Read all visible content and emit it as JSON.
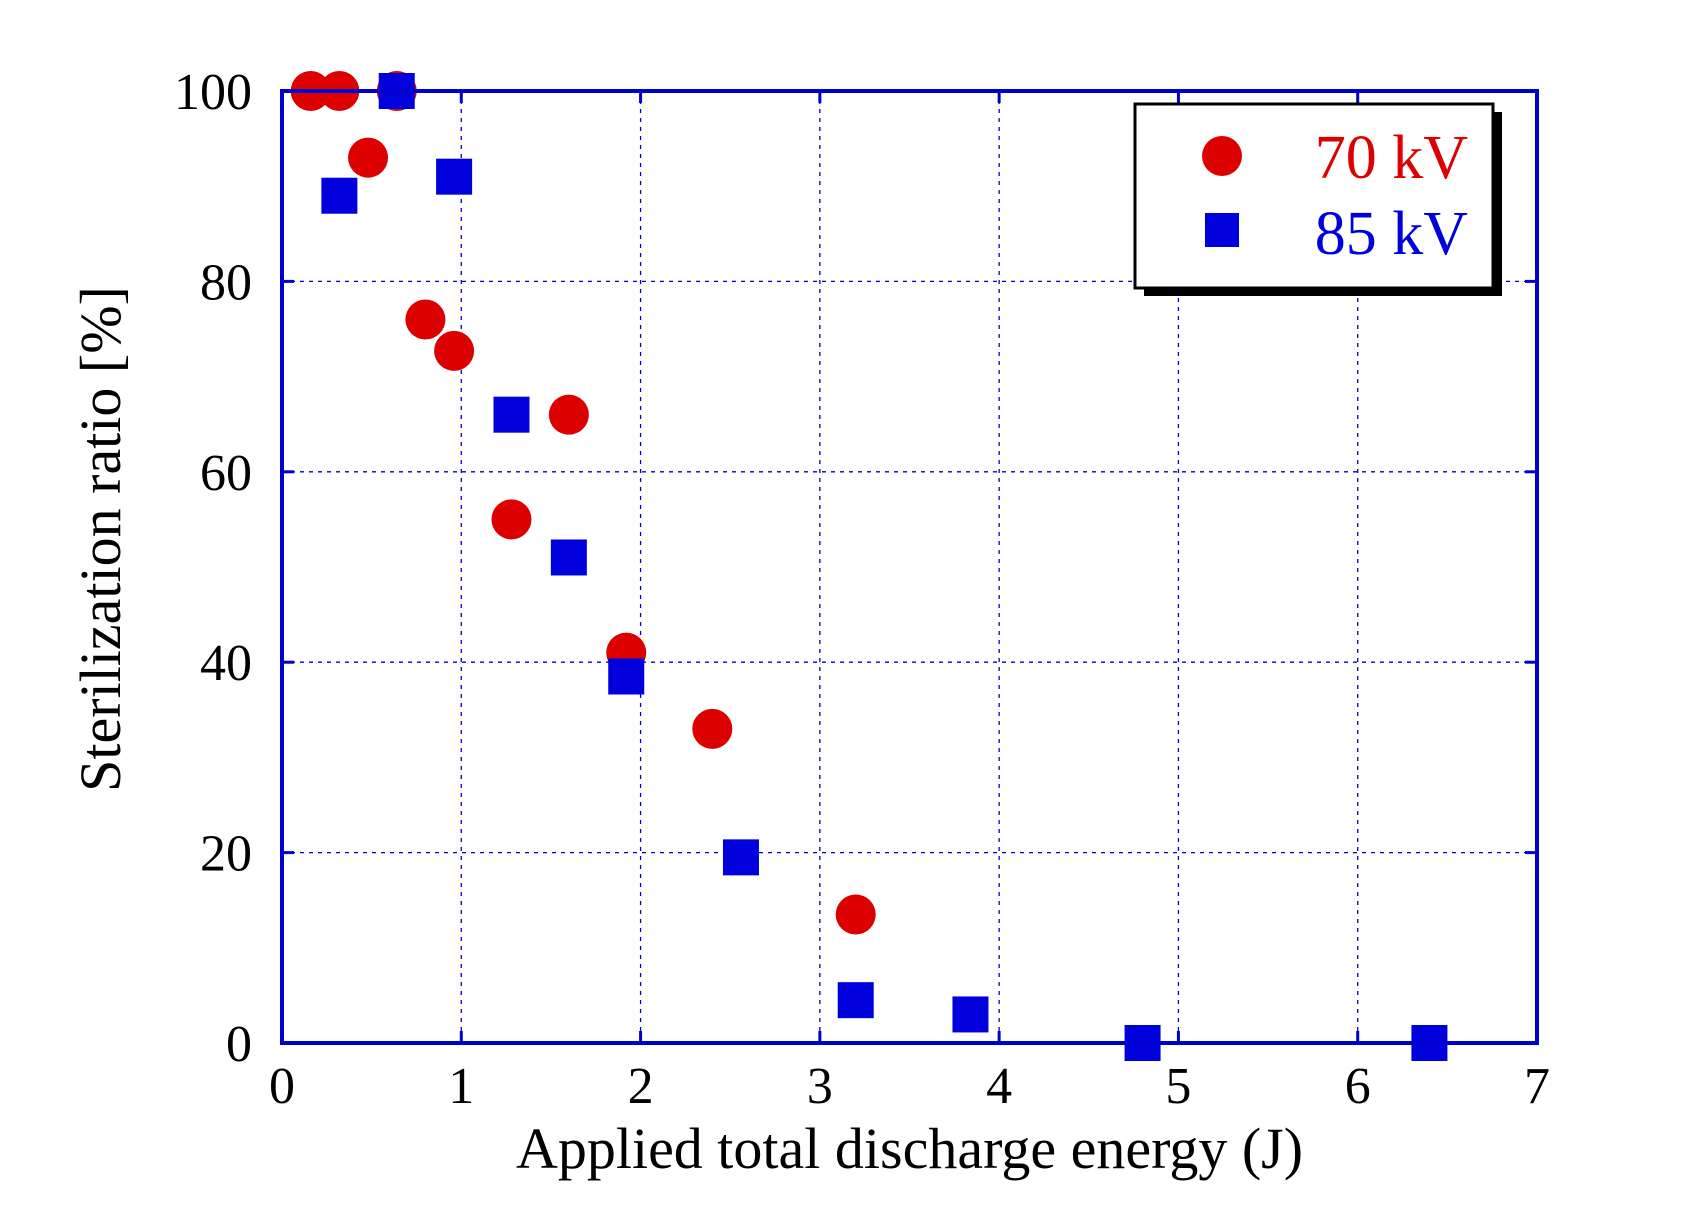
{
  "chart_data": {
    "type": "scatter",
    "title": "",
    "xlabel": "Applied total discharge energy (J)",
    "ylabel": "Sterilization ratio [%]",
    "xlim": [
      0,
      7
    ],
    "ylim": [
      0,
      100
    ],
    "xticks": [
      0,
      1,
      2,
      3,
      4,
      5,
      6,
      7
    ],
    "yticks": [
      0,
      20,
      40,
      60,
      80,
      100
    ],
    "grid": true,
    "legend_position": "top-right",
    "series": [
      {
        "name": "70 kV",
        "marker": "circle",
        "color": "#dd0000",
        "points": [
          {
            "x": 0.16,
            "y": 100
          },
          {
            "x": 0.32,
            "y": 100
          },
          {
            "x": 0.48,
            "y": 93
          },
          {
            "x": 0.64,
            "y": 100
          },
          {
            "x": 0.8,
            "y": 76
          },
          {
            "x": 0.96,
            "y": 72.7
          },
          {
            "x": 1.28,
            "y": 55
          },
          {
            "x": 1.6,
            "y": 66
          },
          {
            "x": 1.92,
            "y": 41
          },
          {
            "x": 2.4,
            "y": 33
          },
          {
            "x": 3.2,
            "y": 13.5
          }
        ]
      },
      {
        "name": "85 kV",
        "marker": "square",
        "color": "#0000dd",
        "points": [
          {
            "x": 0.32,
            "y": 89
          },
          {
            "x": 0.64,
            "y": 100
          },
          {
            "x": 0.96,
            "y": 91
          },
          {
            "x": 1.28,
            "y": 66
          },
          {
            "x": 1.6,
            "y": 51
          },
          {
            "x": 1.92,
            "y": 38.5
          },
          {
            "x": 2.56,
            "y": 19.5
          },
          {
            "x": 3.2,
            "y": 4.5
          },
          {
            "x": 3.84,
            "y": 3
          },
          {
            "x": 4.8,
            "y": 0
          },
          {
            "x": 6.4,
            "y": 0
          }
        ]
      }
    ]
  },
  "colors": {
    "frame": "#0000cc",
    "grid": "#0000cc",
    "text": "#000000"
  }
}
